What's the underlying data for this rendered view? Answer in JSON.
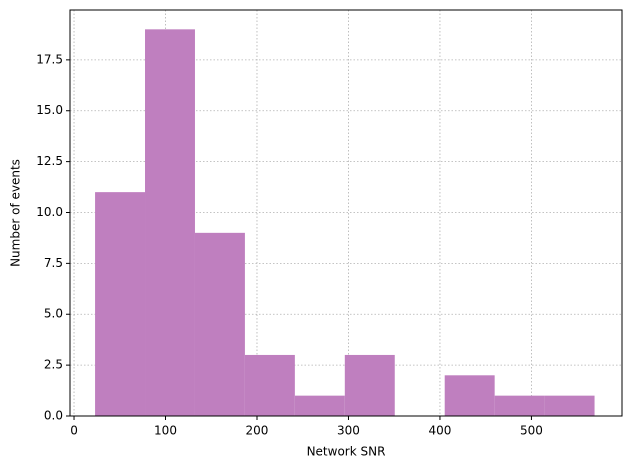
{
  "chart_data": {
    "type": "histogram",
    "xlabel": "Network SNR",
    "ylabel": "Number of events",
    "bins": [
      23,
      77.6,
      132.2,
      186.8,
      241.4,
      296,
      350.6,
      405.2,
      459.8,
      514.4,
      569
    ],
    "values": [
      11,
      19,
      9,
      3,
      1,
      3,
      0,
      2,
      1,
      1
    ],
    "color": "#bf7fbf",
    "xlim": [
      -4.4,
      599
    ],
    "ylim": [
      0,
      19.95
    ],
    "xticks": [
      0,
      100,
      200,
      300,
      400,
      500
    ],
    "yticks": [
      {
        "value": 0,
        "label": "0.0"
      },
      {
        "value": 2.5,
        "label": "2.5"
      },
      {
        "value": 5,
        "label": "5.0"
      },
      {
        "value": 7.5,
        "label": "7.5"
      },
      {
        "value": 10,
        "label": "10.0"
      },
      {
        "value": 12.5,
        "label": "12.5"
      },
      {
        "value": 15,
        "label": "15.0"
      },
      {
        "value": 17.5,
        "label": "17.5"
      }
    ],
    "grid": true
  }
}
